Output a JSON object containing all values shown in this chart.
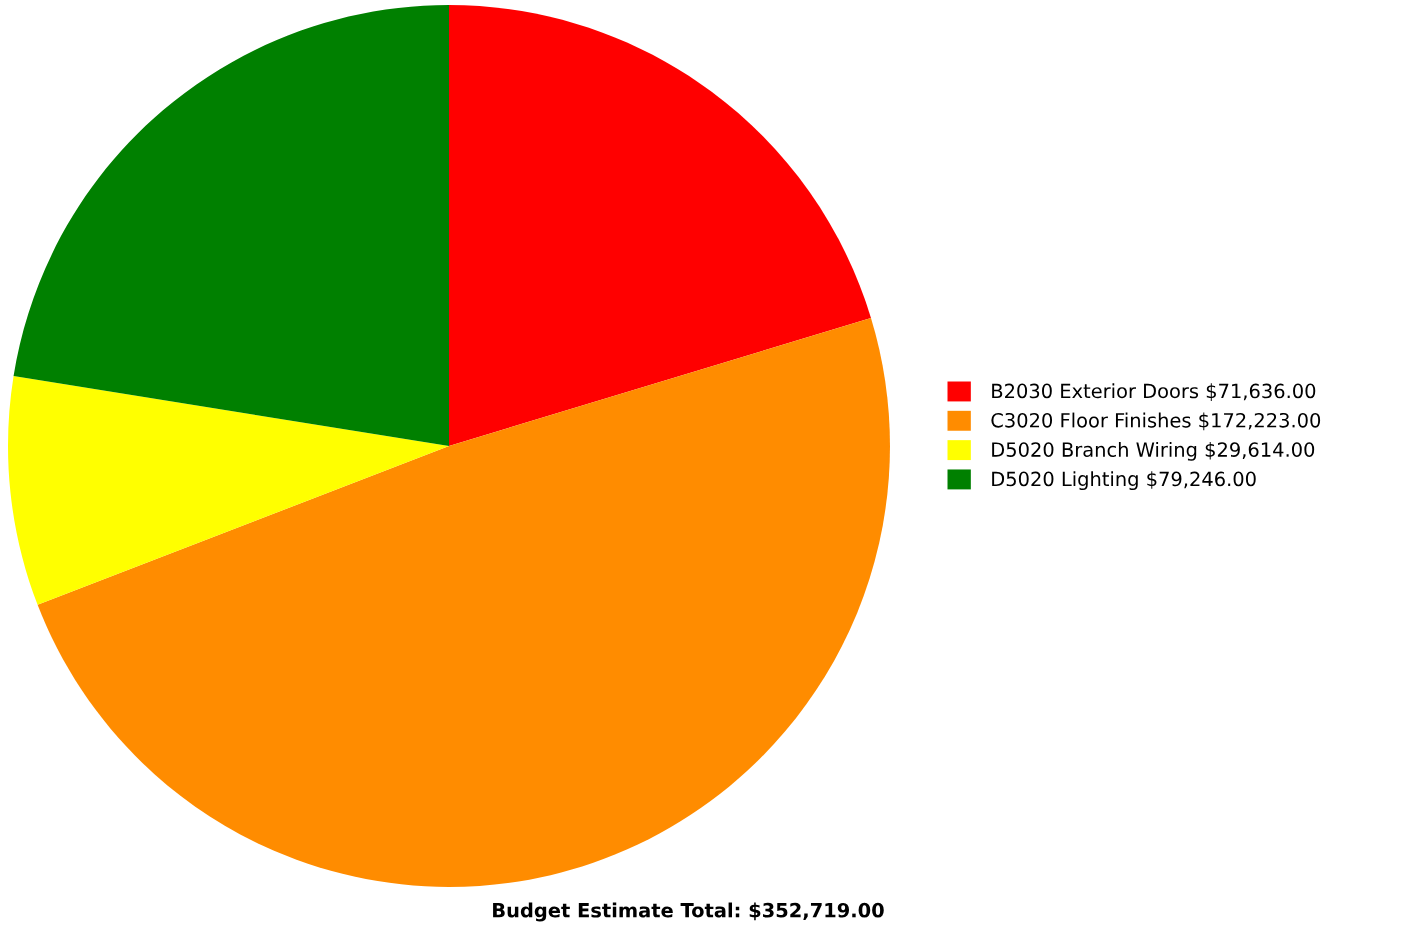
{
  "chart_data": {
    "type": "pie",
    "title": "Budget Estimate Total: $352,719.00",
    "categories": [
      "B2030 Exterior Doors",
      "C3020 Floor Finishes",
      "D5020 Branch Wiring",
      "D5020 Lighting"
    ],
    "values": [
      71636,
      172223,
      29614,
      79246
    ],
    "value_labels": [
      "$71,636.00",
      "$172,223.00",
      "$29,614.00",
      "$79,246.00"
    ],
    "colors": [
      "#ff0000",
      "#ff8c00",
      "#ffff00",
      "#008000"
    ],
    "legend": "right"
  }
}
